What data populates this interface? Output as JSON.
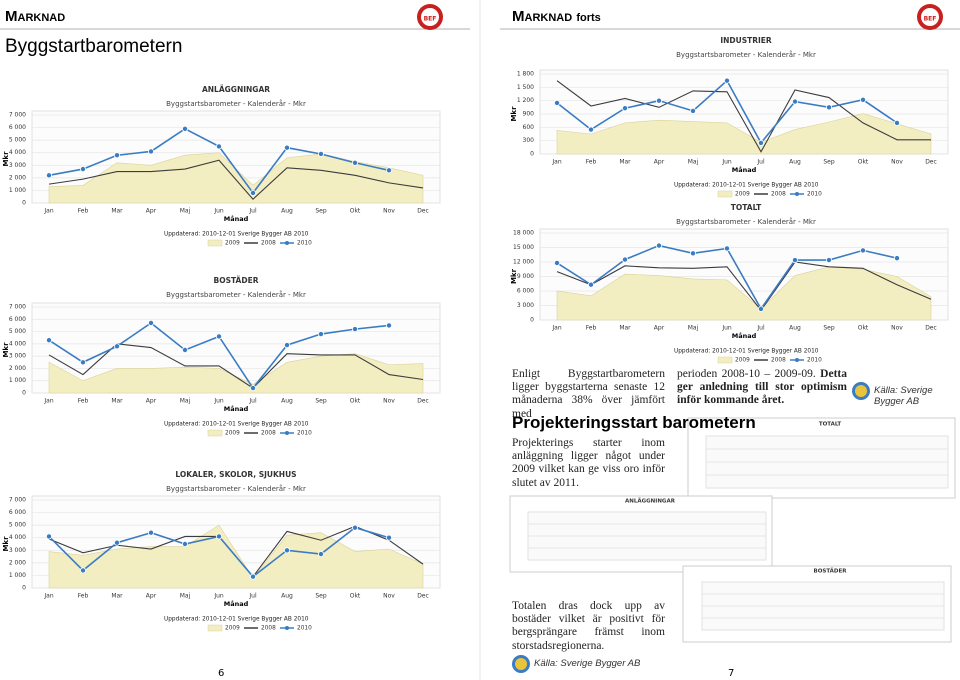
{
  "logo": "BEF",
  "left_page": {
    "section": "Marknad",
    "title": "Byggstartbarometern",
    "page_number": 6,
    "charts": [
      {
        "type": "line",
        "title": "ANLÄGGNINGAR",
        "subtitle": "Byggstartsbarometer - Kalenderår - Mkr",
        "x_label": "Månad",
        "y_label": "Mkr",
        "note": "Uppdaterad: 2010-12-01  Sverige Bygger AB 2010",
        "categories": [
          "Jan",
          "Feb",
          "Mar",
          "Apr",
          "Maj",
          "Jun",
          "Jul",
          "Aug",
          "Sep",
          "Okt",
          "Nov",
          "Dec"
        ],
        "ylim": [
          0,
          7000
        ],
        "yticks": [
          0,
          {
            "value": 1000,
            "label": "1 000"
          },
          {
            "value": 2000,
            "label": "2 000"
          },
          {
            "value": 3000,
            "label": "3 000"
          },
          {
            "value": 4000,
            "label": "4 000"
          },
          {
            "value": 5000,
            "label": "5 000"
          },
          {
            "value": 6000,
            "label": "6 000"
          },
          {
            "value": 7000,
            "label": "7 000"
          }
        ],
        "grid": true,
        "series": [
          {
            "name": "2009",
            "mark": "area",
            "color": "#f3eec2",
            "values": [
              1300,
              1400,
              3200,
              3000,
              3800,
              4000,
              1400,
              3600,
              3900,
              3300,
              2800,
              2200
            ]
          },
          {
            "name": "2008",
            "mark": "line",
            "color": "#3c3c3c",
            "values": [
              1500,
              1900,
              2500,
              2500,
              2700,
              3400,
              300,
              2800,
              2600,
              2200,
              1600,
              1200
            ]
          },
          {
            "name": "2010",
            "mark": "line-markers",
            "color": "#3a7cc4",
            "values": [
              2200,
              2700,
              3800,
              4100,
              5900,
              4500,
              800,
              4400,
              3900,
              3200,
              2600,
              null
            ]
          }
        ]
      },
      {
        "type": "line",
        "title": "BOSTÄDER",
        "subtitle": "Byggstartsbarometer - Kalenderår - Mkr",
        "x_label": "Månad",
        "y_label": "Mkr",
        "note": "Uppdaterad: 2010-12-01  Sverige Bygger AB 2010",
        "categories": [
          "Jan",
          "Feb",
          "Mar",
          "Apr",
          "Maj",
          "Jun",
          "Jul",
          "Aug",
          "Sep",
          "Okt",
          "Nov",
          "Dec"
        ],
        "ylim": [
          0,
          7000
        ],
        "yticks": [
          0,
          {
            "value": 1000,
            "label": "1 000"
          },
          {
            "value": 2000,
            "label": "2 000"
          },
          {
            "value": 3000,
            "label": "3 000"
          },
          {
            "value": 4000,
            "label": "4 000"
          },
          {
            "value": 5000,
            "label": "5 000"
          },
          {
            "value": 6000,
            "label": "6 000"
          },
          {
            "value": 7000,
            "label": "7 000"
          }
        ],
        "grid": true,
        "series": [
          {
            "name": "2009",
            "mark": "area",
            "color": "#f3eec2",
            "values": [
              2500,
              1000,
              2000,
              2000,
              2100,
              2000,
              700,
              2500,
              3000,
              3200,
              2300,
              2400
            ]
          },
          {
            "name": "2008",
            "mark": "line",
            "color": "#3c3c3c",
            "values": [
              3100,
              1500,
              4000,
              3700,
              2200,
              2200,
              400,
              3200,
              3100,
              3100,
              1500,
              1100
            ]
          },
          {
            "name": "2010",
            "mark": "line-markers",
            "color": "#3a7cc4",
            "values": [
              4300,
              2500,
              3800,
              5700,
              3500,
              4600,
              400,
              3900,
              4800,
              5200,
              5500,
              null
            ]
          }
        ]
      },
      {
        "type": "line",
        "title": "LOKALER, SKOLOR, SJUKHUS",
        "subtitle": "Byggstartsbarometer - Kalenderår - Mkr",
        "x_label": "Månad",
        "y_label": "Mkr",
        "note": "Uppdaterad: 2010-12-01  Sverige Bygger AB 2010",
        "categories": [
          "Jan",
          "Feb",
          "Mar",
          "Apr",
          "Maj",
          "Jun",
          "Jul",
          "Aug",
          "Sep",
          "Okt",
          "Nov",
          "Dec"
        ],
        "ylim": [
          0,
          7000
        ],
        "yticks": [
          0,
          {
            "value": 1000,
            "label": "1 000"
          },
          {
            "value": 2000,
            "label": "2 000"
          },
          {
            "value": 3000,
            "label": "3 000"
          },
          {
            "value": 4000,
            "label": "4 000"
          },
          {
            "value": 5000,
            "label": "5 000"
          },
          {
            "value": 6000,
            "label": "6 000"
          },
          {
            "value": 7000,
            "label": "7 000"
          }
        ],
        "grid": true,
        "series": [
          {
            "name": "2009",
            "mark": "area",
            "color": "#f3eec2",
            "values": [
              2900,
              2600,
              3100,
              3300,
              3300,
              5000,
              800,
              4200,
              4400,
              2900,
              3100,
              1900
            ]
          },
          {
            "name": "2008",
            "mark": "line",
            "color": "#3c3c3c",
            "values": [
              3900,
              2800,
              3400,
              3100,
              4100,
              4100,
              900,
              4500,
              3800,
              4900,
              3800,
              1900
            ]
          },
          {
            "name": "2010",
            "mark": "line-markers",
            "color": "#3a7cc4",
            "values": [
              4100,
              1400,
              3600,
              4400,
              3500,
              4100,
              900,
              3000,
              2700,
              4800,
              4000,
              null
            ]
          }
        ]
      }
    ]
  },
  "right_page": {
    "section": "Marknad",
    "section_suffix": "forts",
    "charts": [
      {
        "type": "line",
        "title": "INDUSTRIER",
        "subtitle": "Byggstartsbarometer - Kalenderår - Mkr",
        "x_label": "Månad",
        "y_label": "Mkr",
        "note": "Uppdaterad: 2010-12-01  Sverige Bygger AB 2010",
        "categories": [
          "Jan",
          "Feb",
          "Mar",
          "Apr",
          "Maj",
          "Jun",
          "Jul",
          "Aug",
          "Sep",
          "Okt",
          "Nov",
          "Dec"
        ],
        "ylim": [
          0,
          1800
        ],
        "yticks": [
          0,
          300,
          600,
          900,
          {
            "value": 1200,
            "label": "1 200"
          },
          {
            "value": 1500,
            "label": "1 500"
          },
          {
            "value": 1800,
            "label": "1 800"
          }
        ],
        "grid": true,
        "series": [
          {
            "name": "2009",
            "mark": "area",
            "color": "#f3eec2",
            "values": [
              530,
              450,
              700,
              760,
              730,
              700,
              260,
              550,
              720,
              910,
              680,
              450
            ]
          },
          {
            "name": "2008",
            "mark": "line",
            "color": "#3c3c3c",
            "values": [
              1650,
              1080,
              1250,
              1050,
              1420,
              1400,
              50,
              1440,
              1270,
              700,
              320,
              320
            ]
          },
          {
            "name": "2010",
            "mark": "line-markers",
            "color": "#3a7cc4",
            "values": [
              1150,
              550,
              1030,
              1200,
              970,
              1650,
              250,
              1180,
              1050,
              1220,
              700,
              null
            ]
          }
        ]
      },
      {
        "type": "line",
        "title": "TOTALT",
        "subtitle": "Byggstartsbarometer - Kalenderår - Mkr",
        "x_label": "Månad",
        "y_label": "Mkr",
        "note": "Uppdaterad: 2010-12-01  Sverige Bygger AB 2010",
        "categories": [
          "Jan",
          "Feb",
          "Mar",
          "Apr",
          "Maj",
          "Jun",
          "Jul",
          "Aug",
          "Sep",
          "Okt",
          "Nov",
          "Dec"
        ],
        "ylim": [
          0,
          18000
        ],
        "yticks": [
          0,
          {
            "value": 3000,
            "label": "3 000"
          },
          {
            "value": 6000,
            "label": "6 000"
          },
          {
            "value": 9000,
            "label": "9 000"
          },
          {
            "value": 12000,
            "label": "12 000"
          },
          {
            "value": 15000,
            "label": "15 000"
          },
          {
            "value": 18000,
            "label": "18 000"
          }
        ],
        "grid": true,
        "series": [
          {
            "name": "2009",
            "mark": "area",
            "color": "#f3eec2",
            "values": [
              6000,
              5000,
              9500,
              9200,
              8500,
              8300,
              2300,
              9200,
              11000,
              10500,
              9000,
              4800
            ]
          },
          {
            "name": "2008",
            "mark": "line",
            "color": "#3c3c3c",
            "values": [
              10000,
              7300,
              11200,
              10800,
              10700,
              11000,
              2000,
              12000,
              11000,
              10700,
              7300,
              4300
            ]
          },
          {
            "name": "2010",
            "mark": "line-markers",
            "color": "#3a7cc4",
            "values": [
              11800,
              7300,
              12500,
              15400,
              13800,
              14800,
              2300,
              12400,
              12400,
              14400,
              12800,
              null
            ]
          }
        ]
      }
    ],
    "intro_left": "Enligt Byggstartbarometern ligger byggstarterna senaste 12 månaderna 38% över jämfört med",
    "intro_right": "perioden 2008-10 – 2009-09.",
    "intro_right_bold": "Detta ger anledning till stor optimism inför kommande året.",
    "source": "Källa: Sverige Bygger AB",
    "heading": "Projekteringsstart barometern",
    "paragraph": "Projekterings starter inom anläggning ligger något under 2009 vilket kan ge viss oro inför slutet av 2011.",
    "thumbnails": [
      {
        "title": "TOTALT"
      },
      {
        "title": "ANLÄGGNINGAR"
      },
      {
        "title": "BOSTÄDER"
      }
    ],
    "closing": "Totalen dras dock upp av bostäder vilket är positivt för bergsprängare främst inom storstadsregionerna.",
    "source_2": "Källa: Sverige Bygger AB",
    "page_number": 7
  }
}
